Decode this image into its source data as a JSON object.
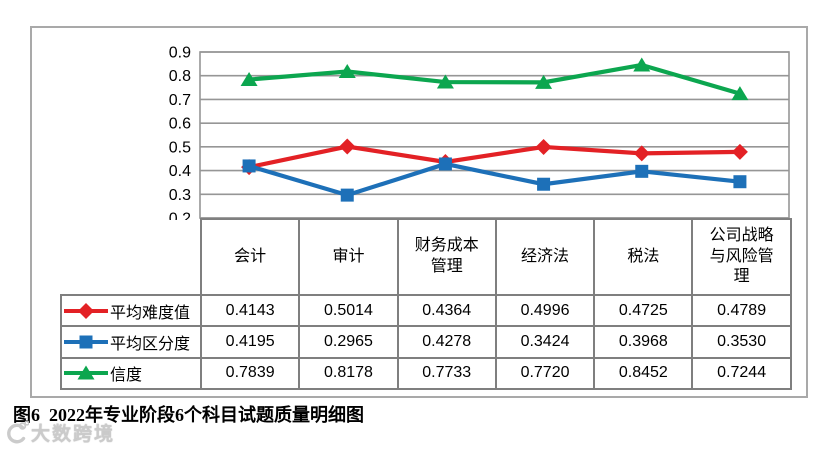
{
  "caption": "图6  2022年专业阶段6个科目试题质量明细图",
  "watermark": {
    "brand": "大数跨境",
    "icon": "100ec-logo"
  },
  "chart_data": {
    "type": "line",
    "title": "",
    "xlabel": "",
    "ylabel": "",
    "categories": [
      "会计",
      "审计",
      "财务成本\n管理",
      "经济法",
      "税法",
      "公司战略\n与风险管\n理"
    ],
    "series": [
      {
        "name": "平均难度值",
        "marker": "diamond",
        "color": "#e32125",
        "values": [
          "0.4143",
          "0.5014",
          "0.4364",
          "0.4996",
          "0.4725",
          "0.4789"
        ]
      },
      {
        "name": "平均区分度",
        "marker": "square",
        "color": "#1d70b8",
        "values": [
          "0.4195",
          "0.2965",
          "0.4278",
          "0.3424",
          "0.3968",
          "0.3530"
        ]
      },
      {
        "name": "信度",
        "marker": "triangle",
        "color": "#0ca64f",
        "values": [
          "0.7839",
          "0.8178",
          "0.7733",
          "0.7720",
          "0.8452",
          "0.7244"
        ]
      }
    ],
    "ylim": [
      0.2,
      0.9
    ],
    "yticks": [
      "0.9",
      "0.8",
      "0.7",
      "0.6",
      "0.5",
      "0.4",
      "0.3",
      "0.2"
    ],
    "grid": true,
    "gridline_color": "#969696",
    "legend_position": "left-of-table"
  }
}
